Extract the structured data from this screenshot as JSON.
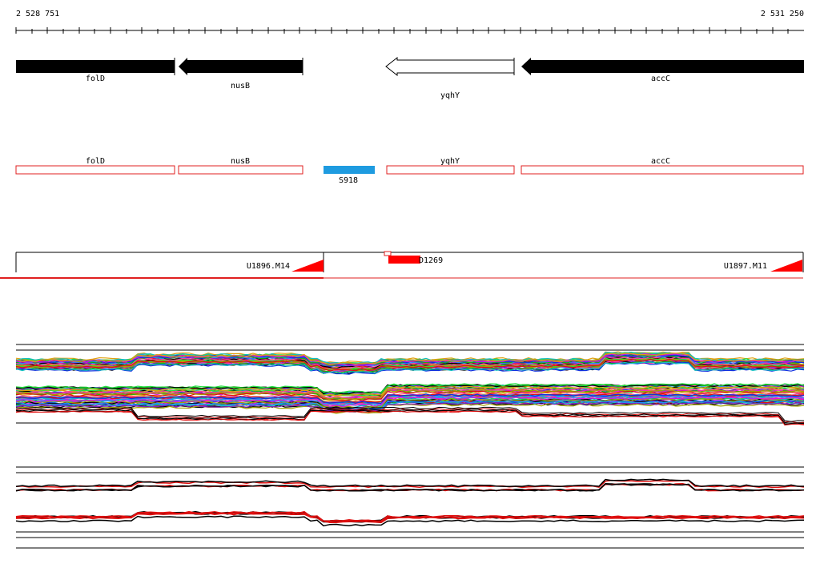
{
  "region": {
    "start_label": "2 528 751",
    "end_label": "2 531 250",
    "start": 2528751,
    "end": 2531250
  },
  "genes": [
    {
      "name": "folD",
      "start": 2528751,
      "end": 2529255,
      "strand": "-",
      "style": "filled"
    },
    {
      "name": "nusB",
      "start": 2529263,
      "end": 2529660,
      "strand": "-",
      "style": "filled"
    },
    {
      "name": "yqhY",
      "start": 2529917,
      "end": 2530325,
      "strand": "-",
      "style": "outline"
    },
    {
      "name": "accC",
      "start": 2530345,
      "end": 2531250,
      "strand": "-",
      "style": "filled"
    }
  ],
  "annotations": [
    {
      "name": "folD",
      "start": 2528751,
      "end": 2529255
    },
    {
      "name": "nusB",
      "start": 2529263,
      "end": 2529660
    },
    {
      "name": "yqhY",
      "start": 2529917,
      "end": 2530325
    },
    {
      "name": "accC",
      "start": 2530345,
      "end": 2531250
    }
  ],
  "feature": {
    "name": "S918",
    "color": "#1e9be0"
  },
  "segments": [
    {
      "name": "U1896.M14"
    },
    {
      "name": "D1269"
    },
    {
      "name": "U1897.M11"
    }
  ],
  "colors": {
    "gene_fill": "#000000",
    "annotation_outline": "#e02020",
    "segment_marker": "#ff0000",
    "feature": "#1e9be0"
  }
}
